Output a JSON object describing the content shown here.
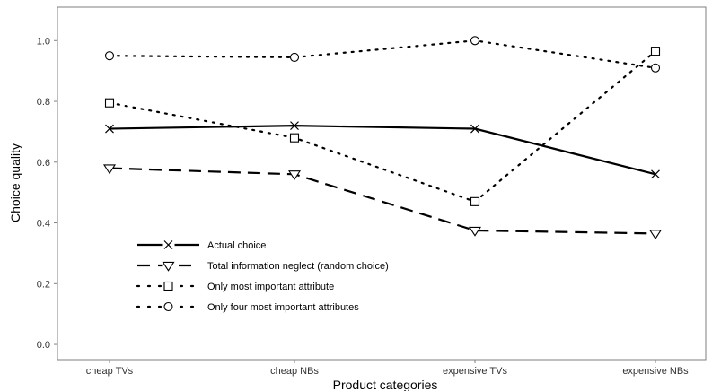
{
  "chart_data": {
    "type": "line",
    "xlabel": "Product categories",
    "ylabel": "Choice quality",
    "categories": [
      "cheap TVs",
      "cheap NBs",
      "expensive TVs",
      "expensive NBs"
    ],
    "ylim": [
      -0.05,
      1.11
    ],
    "yticks": [
      0.0,
      0.2,
      0.4,
      0.6,
      0.8,
      1.0
    ],
    "ytick_labels": [
      "0.0",
      "0.2",
      "0.4",
      "0.6",
      "0.8",
      "1.0"
    ],
    "grid": false,
    "legend_position": "bottom-left",
    "series": [
      {
        "name": "Actual choice",
        "linestyle": "solid",
        "marker": "x",
        "values": [
          0.71,
          0.72,
          0.71,
          0.56
        ]
      },
      {
        "name": "Total information neglect (random choice)",
        "linestyle": "dashed",
        "marker": "triangle-down",
        "values": [
          0.58,
          0.56,
          0.375,
          0.365
        ]
      },
      {
        "name": "Only most important attribute",
        "linestyle": "dotted",
        "marker": "square",
        "values": [
          0.795,
          0.68,
          0.47,
          0.965
        ]
      },
      {
        "name": "Only four most important attributes",
        "linestyle": "dotted",
        "marker": "circle",
        "values": [
          0.95,
          0.945,
          1.0,
          0.91
        ]
      }
    ]
  }
}
